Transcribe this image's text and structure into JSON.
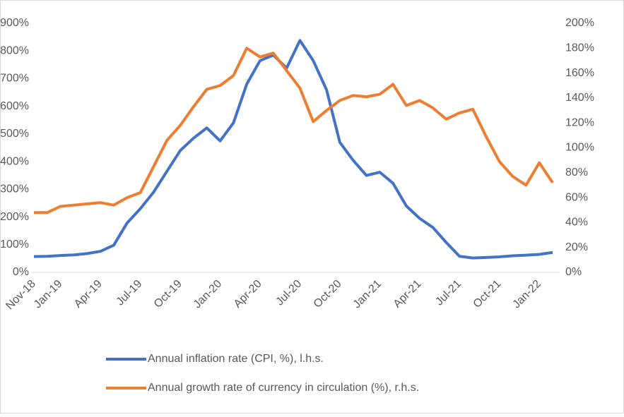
{
  "chart_data": {
    "type": "line",
    "categories": [
      "Nov-18",
      null,
      "Jan-19",
      null,
      null,
      "Apr-19",
      null,
      null,
      "Jul-19",
      null,
      null,
      "Oct-19",
      null,
      null,
      "Jan-20",
      null,
      null,
      "Apr-20",
      null,
      null,
      "Jul-20",
      null,
      null,
      "Oct-20",
      null,
      null,
      "Jan-21",
      null,
      null,
      "Apr-21",
      null,
      null,
      "Jul-21",
      null,
      null,
      "Oct-21",
      null,
      null,
      "Jan-22",
      null
    ],
    "series": [
      {
        "name": "Annual inflation rate (CPI, %), l.h.s.",
        "color": "#4472c4",
        "axis": "y",
        "values": [
          57,
          58,
          61,
          63,
          68,
          76,
          98,
          178,
          230,
          290,
          365,
          440,
          485,
          522,
          475,
          540,
          680,
          765,
          785,
          738,
          838,
          765,
          660,
          470,
          405,
          350,
          362,
          322,
          240,
          195,
          162,
          108,
          58,
          52,
          54,
          56,
          60,
          62,
          65,
          72
        ]
      },
      {
        "name": "Annual growth rate of currency in circulation (%), r.h.s.",
        "color": "#ed7d31",
        "axis": "y2",
        "values": [
          48,
          48,
          53,
          54,
          55,
          56,
          54,
          60,
          64,
          85,
          106,
          118,
          133,
          147,
          150,
          158,
          180,
          173,
          176,
          162,
          148,
          121,
          130,
          138,
          142,
          141,
          143,
          151,
          134,
          138,
          132,
          123,
          128,
          131,
          109,
          89,
          77,
          70,
          88,
          72
        ]
      }
    ],
    "ylim": [
      0,
      900
    ],
    "yticks": [
      {
        "value": 0,
        "label": "0%"
      },
      {
        "value": 100,
        "label": "100%"
      },
      {
        "value": 200,
        "label": "200%"
      },
      {
        "value": 300,
        "label": "300%"
      },
      {
        "value": 400,
        "label": "400%"
      },
      {
        "value": 500,
        "label": "500%"
      },
      {
        "value": 600,
        "label": "600%"
      },
      {
        "value": 700,
        "label": "700%"
      },
      {
        "value": 800,
        "label": "800%"
      },
      {
        "value": 900,
        "label": "900%"
      }
    ],
    "y2lim": [
      0,
      200
    ],
    "y2ticks": [
      {
        "value": 0,
        "label": "0%"
      },
      {
        "value": 20,
        "label": "20%"
      },
      {
        "value": 40,
        "label": "40%"
      },
      {
        "value": 60,
        "label": "60%"
      },
      {
        "value": 80,
        "label": "80%"
      },
      {
        "value": 100,
        "label": "100%"
      },
      {
        "value": 120,
        "label": "120%"
      },
      {
        "value": 140,
        "label": "140%"
      },
      {
        "value": 160,
        "label": "160%"
      },
      {
        "value": 180,
        "label": "180%"
      },
      {
        "value": 200,
        "label": "200%"
      }
    ],
    "legend": "bottom"
  }
}
